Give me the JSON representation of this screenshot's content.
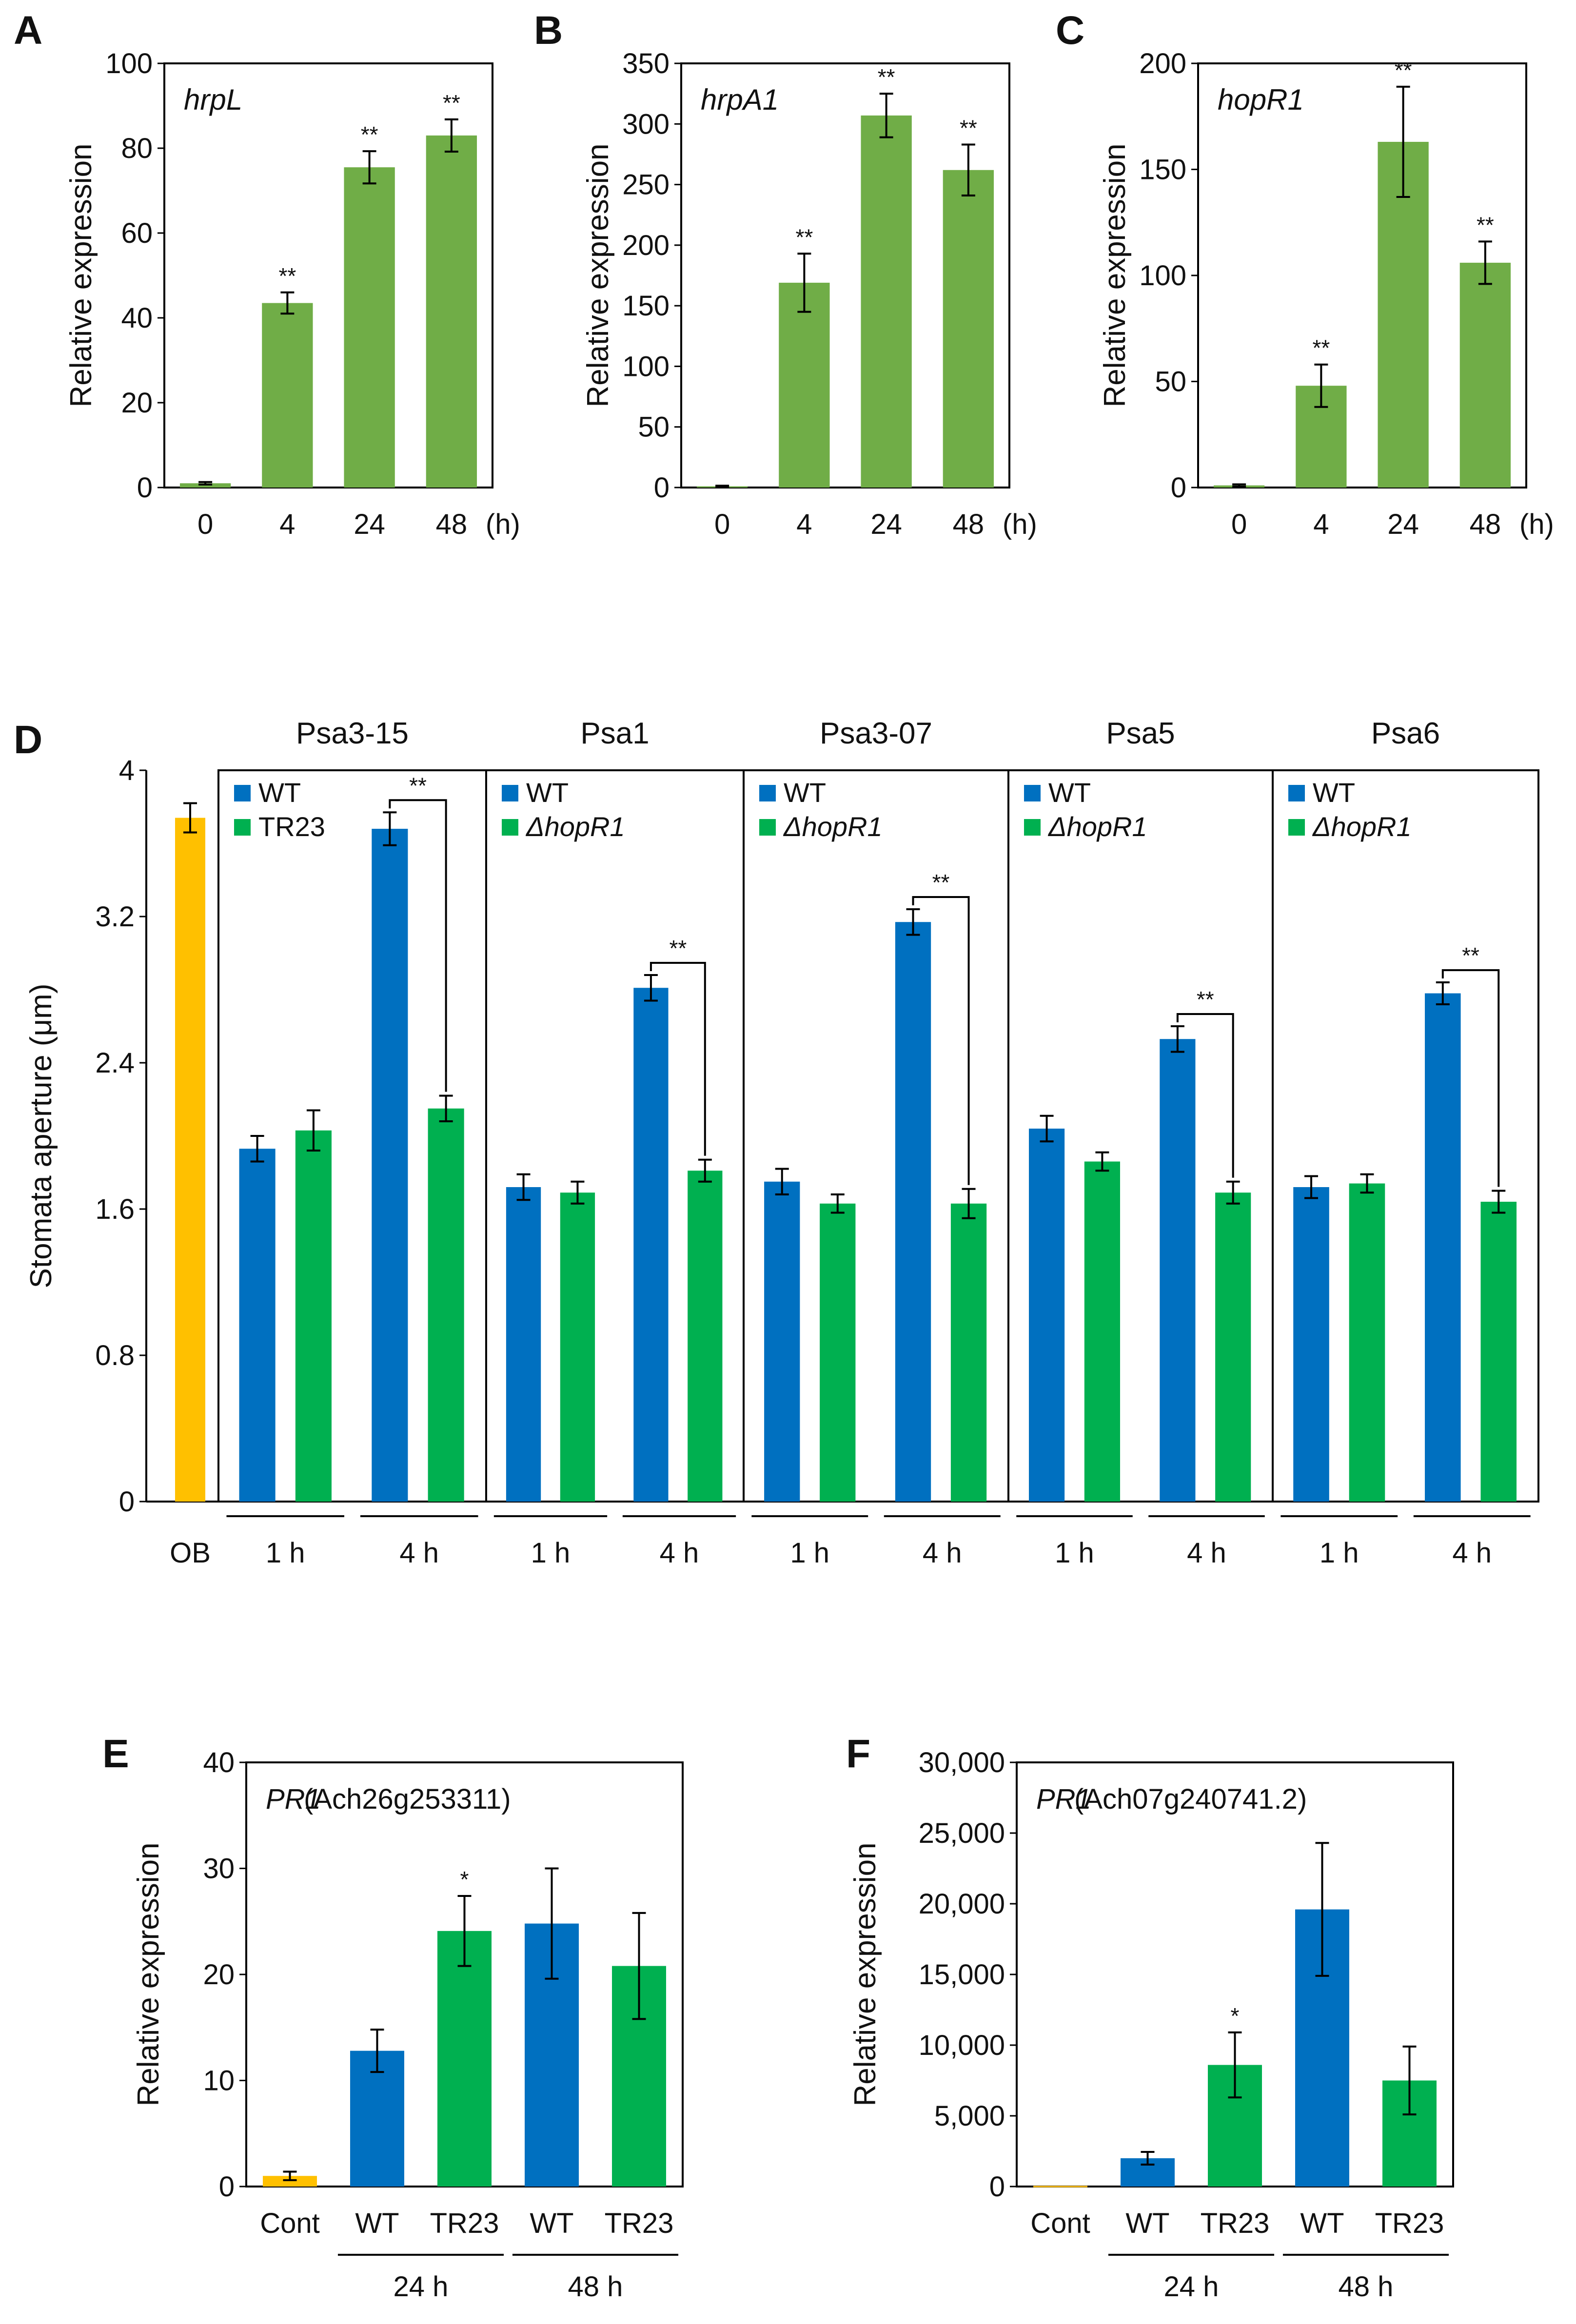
{
  "figure": {
    "panel_labels": [
      "A",
      "B",
      "C",
      "D",
      "E",
      "F"
    ]
  },
  "colors": {
    "green_light": "#70ad47",
    "blue": "#0070c0",
    "green": "#00b050",
    "orange": "#ffc000",
    "axis": "#000000"
  },
  "chart_data": [
    {
      "id": "A",
      "type": "bar",
      "title": "hrpL",
      "ylabel": "Relative expression",
      "xlabel": "",
      "categories": [
        "0",
        "4",
        "24",
        "48"
      ],
      "unit_label": "(h)",
      "values": [
        1,
        43.5,
        75.5,
        83
      ],
      "errors": [
        0.3,
        2.5,
        3.8,
        3.8
      ],
      "significance": [
        "",
        "**",
        "**",
        "**"
      ],
      "ylim": [
        0,
        100
      ],
      "yticks": [
        "0",
        "20",
        "40",
        "60",
        "80",
        "100"
      ],
      "bar_color": "#70ad47"
    },
    {
      "id": "B",
      "type": "bar",
      "title": "hrpA1",
      "ylabel": "Relative expression",
      "xlabel": "",
      "categories": [
        "0",
        "4",
        "24",
        "48"
      ],
      "unit_label": "(h)",
      "values": [
        1,
        169,
        307,
        262
      ],
      "errors": [
        0.5,
        24,
        18,
        21
      ],
      "significance": [
        "",
        "**",
        "**",
        "**"
      ],
      "ylim": [
        0,
        350
      ],
      "yticks": [
        "0",
        "50",
        "100",
        "150",
        "200",
        "250",
        "300",
        "350"
      ],
      "bar_color": "#70ad47"
    },
    {
      "id": "C",
      "type": "bar",
      "title": "hopR1",
      "ylabel": "Relative expression",
      "xlabel": "",
      "categories": [
        "0",
        "4",
        "24",
        "48"
      ],
      "unit_label": "(h)",
      "values": [
        1,
        48,
        163,
        106
      ],
      "errors": [
        0.5,
        10,
        26,
        10
      ],
      "significance": [
        "",
        "**",
        "**",
        "**"
      ],
      "ylim": [
        0,
        200
      ],
      "yticks": [
        "0",
        "50",
        "100",
        "150",
        "200"
      ],
      "bar_color": "#70ad47"
    },
    {
      "id": "D",
      "type": "bar",
      "ylabel": "Stomata aperture (μm)",
      "ylim": [
        0,
        4
      ],
      "yticks": [
        "0",
        "0.8",
        "1.6",
        "2.4",
        "3.2",
        "4"
      ],
      "ob": {
        "label": "OB",
        "value": 3.74,
        "error": 0.08,
        "color": "#ffc000"
      },
      "time_labels": [
        "1 h",
        "4 h"
      ],
      "groups": [
        {
          "title": "Psa3-15",
          "legend": [
            "WT",
            "TR23"
          ],
          "legend_italic": false,
          "wt": [
            1.93,
            3.68
          ],
          "wt_err": [
            0.07,
            0.09
          ],
          "mut": [
            2.03,
            2.15
          ],
          "mut_err": [
            0.11,
            0.07
          ],
          "sig": "**"
        },
        {
          "title": "Psa1",
          "legend": [
            "WT",
            "ΔhopR1"
          ],
          "legend_italic": true,
          "wt": [
            1.72,
            2.81
          ],
          "wt_err": [
            0.07,
            0.07
          ],
          "mut": [
            1.69,
            1.81
          ],
          "mut_err": [
            0.06,
            0.06
          ],
          "sig": "**"
        },
        {
          "title": "Psa3-07",
          "legend": [
            "WT",
            "ΔhopR1"
          ],
          "legend_italic": true,
          "wt": [
            1.75,
            3.17
          ],
          "wt_err": [
            0.07,
            0.07
          ],
          "mut": [
            1.63,
            1.63
          ],
          "mut_err": [
            0.05,
            0.08
          ],
          "sig": "**"
        },
        {
          "title": "Psa5",
          "legend": [
            "WT",
            "ΔhopR1"
          ],
          "legend_italic": true,
          "wt": [
            2.04,
            2.53
          ],
          "wt_err": [
            0.07,
            0.07
          ],
          "mut": [
            1.86,
            1.69
          ],
          "mut_err": [
            0.05,
            0.06
          ],
          "sig": "**"
        },
        {
          "title": "Psa6",
          "legend": [
            "WT",
            "ΔhopR1"
          ],
          "legend_italic": true,
          "wt": [
            1.72,
            2.78
          ],
          "wt_err": [
            0.06,
            0.06
          ],
          "mut": [
            1.74,
            1.64
          ],
          "mut_err": [
            0.05,
            0.06
          ],
          "sig": "**"
        }
      ]
    },
    {
      "id": "E",
      "type": "bar",
      "title_gene": "PR1",
      "title_rest": " (Ach26g253311)",
      "ylabel": "Relative expression",
      "categories": [
        "Cont",
        "WT",
        "TR23",
        "WT",
        "TR23"
      ],
      "values": [
        1,
        12.8,
        24.1,
        24.8,
        20.8
      ],
      "errors": [
        0.4,
        2.0,
        3.3,
        5.2,
        5.0
      ],
      "significance": [
        "",
        "",
        "*",
        "",
        ""
      ],
      "bar_colors": [
        "#ffc000",
        "#0070c0",
        "#00b050",
        "#0070c0",
        "#00b050"
      ],
      "groups": [
        "24 h",
        "48 h"
      ],
      "ylim": [
        0,
        40
      ],
      "yticks": [
        "0",
        "10",
        "20",
        "30",
        "40"
      ]
    },
    {
      "id": "F",
      "type": "bar",
      "title_gene": "PR1",
      "title_rest": " (Ach07g240741.2)",
      "ylabel": "Relative expression",
      "categories": [
        "Cont",
        "WT",
        "TR23",
        "WT",
        "TR23"
      ],
      "values": [
        50,
        2000,
        8600,
        19600,
        7500
      ],
      "errors": [
        0,
        450,
        2300,
        4700,
        2400
      ],
      "significance": [
        "",
        "",
        "*",
        "",
        ""
      ],
      "bar_colors": [
        "#ffc000",
        "#0070c0",
        "#00b050",
        "#0070c0",
        "#00b050"
      ],
      "groups": [
        "24 h",
        "48 h"
      ],
      "ylim": [
        0,
        30000
      ],
      "yticks": [
        "0",
        "5,000",
        "10,000",
        "15,000",
        "20,000",
        "25,000",
        "30,000"
      ]
    }
  ]
}
